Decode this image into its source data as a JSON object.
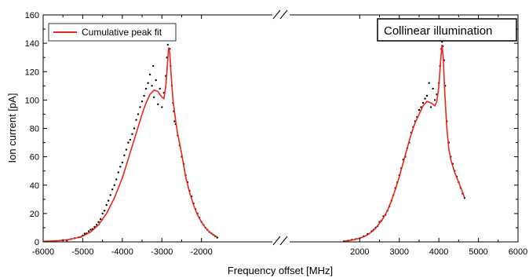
{
  "chart_data": {
    "type": "scatter",
    "xlabel": "Frequency offset [MHz]",
    "ylabel": "Ion current [pA]",
    "xlim": [
      -6000,
      6000
    ],
    "ylim": [
      0,
      160
    ],
    "axis_break": [
      -1550,
      1550
    ],
    "x_ticks": [
      -6000,
      -5000,
      -4000,
      -3000,
      -2000,
      2000,
      3000,
      4000,
      5000,
      6000
    ],
    "x_tick_labels": [
      "-6000",
      "-5000",
      "-4000",
      "-3000",
      "-2000",
      "2000",
      "3000",
      "4000",
      "5000",
      "6000"
    ],
    "y_ticks": [
      0,
      20,
      40,
      60,
      80,
      100,
      120,
      140,
      160
    ],
    "y_tick_labels": [
      "0",
      "20",
      "40",
      "60",
      "80",
      "100",
      "120",
      "140",
      "160"
    ],
    "legend": {
      "placement": "top-left",
      "entries": [
        "Cumulative peak fit"
      ]
    },
    "annotation": "Collinear illumination",
    "colors": {
      "fit": "#e8261c",
      "points": "#000000"
    },
    "series": [
      {
        "name": "Cumulative peak fit",
        "style": "line",
        "segments": [
          [
            [
              -6000,
              0.4
            ],
            [
              -5800,
              0.6
            ],
            [
              -5600,
              0.9
            ],
            [
              -5400,
              1.5
            ],
            [
              -5200,
              2.5
            ],
            [
              -5000,
              4
            ],
            [
              -4800,
              7
            ],
            [
              -4600,
              12
            ],
            [
              -4400,
              20
            ],
            [
              -4200,
              31
            ],
            [
              -4000,
              45
            ],
            [
              -3900,
              54
            ],
            [
              -3800,
              63
            ],
            [
              -3700,
              72
            ],
            [
              -3600,
              81
            ],
            [
              -3500,
              90
            ],
            [
              -3400,
              98
            ],
            [
              -3300,
              104
            ],
            [
              -3200,
              107
            ],
            [
              -3100,
              106
            ],
            [
              -3000,
              102
            ],
            [
              -2950,
              101
            ],
            [
              -2900,
              110
            ],
            [
              -2860,
              125
            ],
            [
              -2830,
              137
            ],
            [
              -2800,
              133
            ],
            [
              -2760,
              115
            ],
            [
              -2720,
              100
            ],
            [
              -2650,
              85
            ],
            [
              -2600,
              76
            ],
            [
              -2500,
              62
            ],
            [
              -2400,
              46
            ],
            [
              -2300,
              35
            ],
            [
              -2200,
              26
            ],
            [
              -2100,
              19
            ],
            [
              -2000,
              14
            ],
            [
              -1900,
              10
            ],
            [
              -1800,
              7
            ],
            [
              -1700,
              5
            ],
            [
              -1600,
              3.5
            ]
          ],
          [
            [
              1600,
              0.5
            ],
            [
              1700,
              0.8
            ],
            [
              1800,
              1.2
            ],
            [
              1900,
              1.8
            ],
            [
              2000,
              2.6
            ],
            [
              2100,
              3.6
            ],
            [
              2200,
              5
            ],
            [
              2300,
              7
            ],
            [
              2400,
              9.5
            ],
            [
              2500,
              13
            ],
            [
              2600,
              17
            ],
            [
              2700,
              22
            ],
            [
              2800,
              29
            ],
            [
              2900,
              37
            ],
            [
              3000,
              46
            ],
            [
              3100,
              56
            ],
            [
              3200,
              66
            ],
            [
              3300,
              76
            ],
            [
              3400,
              84
            ],
            [
              3500,
              90
            ],
            [
              3600,
              96
            ],
            [
              3700,
              99
            ],
            [
              3800,
              98
            ],
            [
              3900,
              96
            ],
            [
              3950,
              99
            ],
            [
              4000,
              110
            ],
            [
              4050,
              130
            ],
            [
              4080,
              139
            ],
            [
              4110,
              130
            ],
            [
              4150,
              105
            ],
            [
              4200,
              80
            ],
            [
              4250,
              66
            ],
            [
              4300,
              58
            ],
            [
              4400,
              49
            ],
            [
              4500,
              42
            ],
            [
              4600,
              35
            ],
            [
              4650,
              31
            ]
          ]
        ]
      },
      {
        "name": "",
        "style": "points",
        "points": [
          [
            -5900,
            0.3
          ],
          [
            -5700,
            0.6
          ],
          [
            -5500,
            1.2
          ],
          [
            -5400,
            1.0
          ],
          [
            -5300,
            2.0
          ],
          [
            -5200,
            2.6
          ],
          [
            -5100,
            3.2
          ],
          [
            -5050,
            3.5
          ],
          [
            -5000,
            4.5
          ],
          [
            -4950,
            5.8
          ],
          [
            -4900,
            6.0
          ],
          [
            -4850,
            7.5
          ],
          [
            -4800,
            8.5
          ],
          [
            -4750,
            9.0
          ],
          [
            -4700,
            10.5
          ],
          [
            -4650,
            12
          ],
          [
            -4600,
            14
          ],
          [
            -4550,
            16
          ],
          [
            -4500,
            20
          ],
          [
            -4450,
            22
          ],
          [
            -4400,
            26
          ],
          [
            -4350,
            29
          ],
          [
            -4300,
            33
          ],
          [
            -4250,
            37
          ],
          [
            -4200,
            40
          ],
          [
            -4150,
            44
          ],
          [
            -4100,
            49
          ],
          [
            -4050,
            53
          ],
          [
            -4000,
            56
          ],
          [
            -3950,
            61
          ],
          [
            -3900,
            65
          ],
          [
            -3850,
            70
          ],
          [
            -3800,
            72
          ],
          [
            -3750,
            76
          ],
          [
            -3700,
            80
          ],
          [
            -3650,
            86
          ],
          [
            -3600,
            90
          ],
          [
            -3550,
            95
          ],
          [
            -3500,
            99
          ],
          [
            -3450,
            103
          ],
          [
            -3400,
            108
          ],
          [
            -3350,
            112
          ],
          [
            -3300,
            118
          ],
          [
            -3250,
            110
          ],
          [
            -3220,
            124
          ],
          [
            -3200,
            102
          ],
          [
            -3150,
            114
          ],
          [
            -3100,
            97
          ],
          [
            -3050,
            108
          ],
          [
            -3000,
            95
          ],
          [
            -2950,
            105
          ],
          [
            -2900,
            117
          ],
          [
            -2870,
            130
          ],
          [
            -2850,
            139
          ],
          [
            -2830,
            146
          ],
          [
            -2820,
            151
          ],
          [
            -2800,
            136
          ],
          [
            -2780,
            124
          ],
          [
            -2750,
            110
          ],
          [
            -2720,
            98
          ],
          [
            -2700,
            92
          ],
          [
            -2680,
            85
          ],
          [
            -2650,
            83
          ],
          [
            -2600,
            75
          ],
          [
            -2550,
            68
          ],
          [
            -2500,
            60
          ],
          [
            -2450,
            55
          ],
          [
            -2400,
            47
          ],
          [
            -2350,
            42
          ],
          [
            -2300,
            36
          ],
          [
            -2250,
            32
          ],
          [
            -2200,
            27
          ],
          [
            -2150,
            23
          ],
          [
            -2100,
            20
          ],
          [
            -2050,
            17
          ],
          [
            -2000,
            14
          ],
          [
            -1950,
            12
          ],
          [
            -1900,
            10
          ],
          [
            -1850,
            8.5
          ],
          [
            -1800,
            7
          ],
          [
            -1750,
            6
          ],
          [
            -1700,
            5
          ],
          [
            -1650,
            4
          ],
          [
            -1600,
            3
          ],
          [
            1600,
            0.4
          ],
          [
            1700,
            0.9
          ],
          [
            1800,
            1.5
          ],
          [
            1900,
            2.0
          ],
          [
            2000,
            2.5
          ],
          [
            2100,
            4.0
          ],
          [
            2200,
            5.5
          ],
          [
            2300,
            7.5
          ],
          [
            2350,
            8.5
          ],
          [
            2400,
            10
          ],
          [
            2450,
            11
          ],
          [
            2500,
            14
          ],
          [
            2550,
            15
          ],
          [
            2600,
            18
          ],
          [
            2650,
            19
          ],
          [
            2700,
            22
          ],
          [
            2750,
            25
          ],
          [
            2800,
            29
          ],
          [
            2850,
            33
          ],
          [
            2900,
            38
          ],
          [
            2950,
            42
          ],
          [
            3000,
            47
          ],
          [
            3050,
            52
          ],
          [
            3100,
            58
          ],
          [
            3150,
            60
          ],
          [
            3200,
            66
          ],
          [
            3250,
            70
          ],
          [
            3300,
            77
          ],
          [
            3350,
            81
          ],
          [
            3400,
            85
          ],
          [
            3450,
            88
          ],
          [
            3500,
            93
          ],
          [
            3550,
            95
          ],
          [
            3600,
            98
          ],
          [
            3650,
            101
          ],
          [
            3700,
            103
          ],
          [
            3750,
            112
          ],
          [
            3800,
            95
          ],
          [
            3850,
            108
          ],
          [
            3900,
            100
          ],
          [
            3950,
            104
          ],
          [
            4000,
            112
          ],
          [
            4030,
            124
          ],
          [
            4060,
            136
          ],
          [
            4080,
            141
          ],
          [
            4100,
            138
          ],
          [
            4130,
            128
          ],
          [
            4160,
            110
          ],
          [
            4200,
            85
          ],
          [
            4250,
            70
          ],
          [
            4300,
            60
          ],
          [
            4350,
            55
          ],
          [
            4400,
            50
          ],
          [
            4450,
            46
          ],
          [
            4500,
            42
          ],
          [
            4550,
            38
          ],
          [
            4600,
            34
          ],
          [
            4650,
            31
          ]
        ]
      }
    ]
  }
}
